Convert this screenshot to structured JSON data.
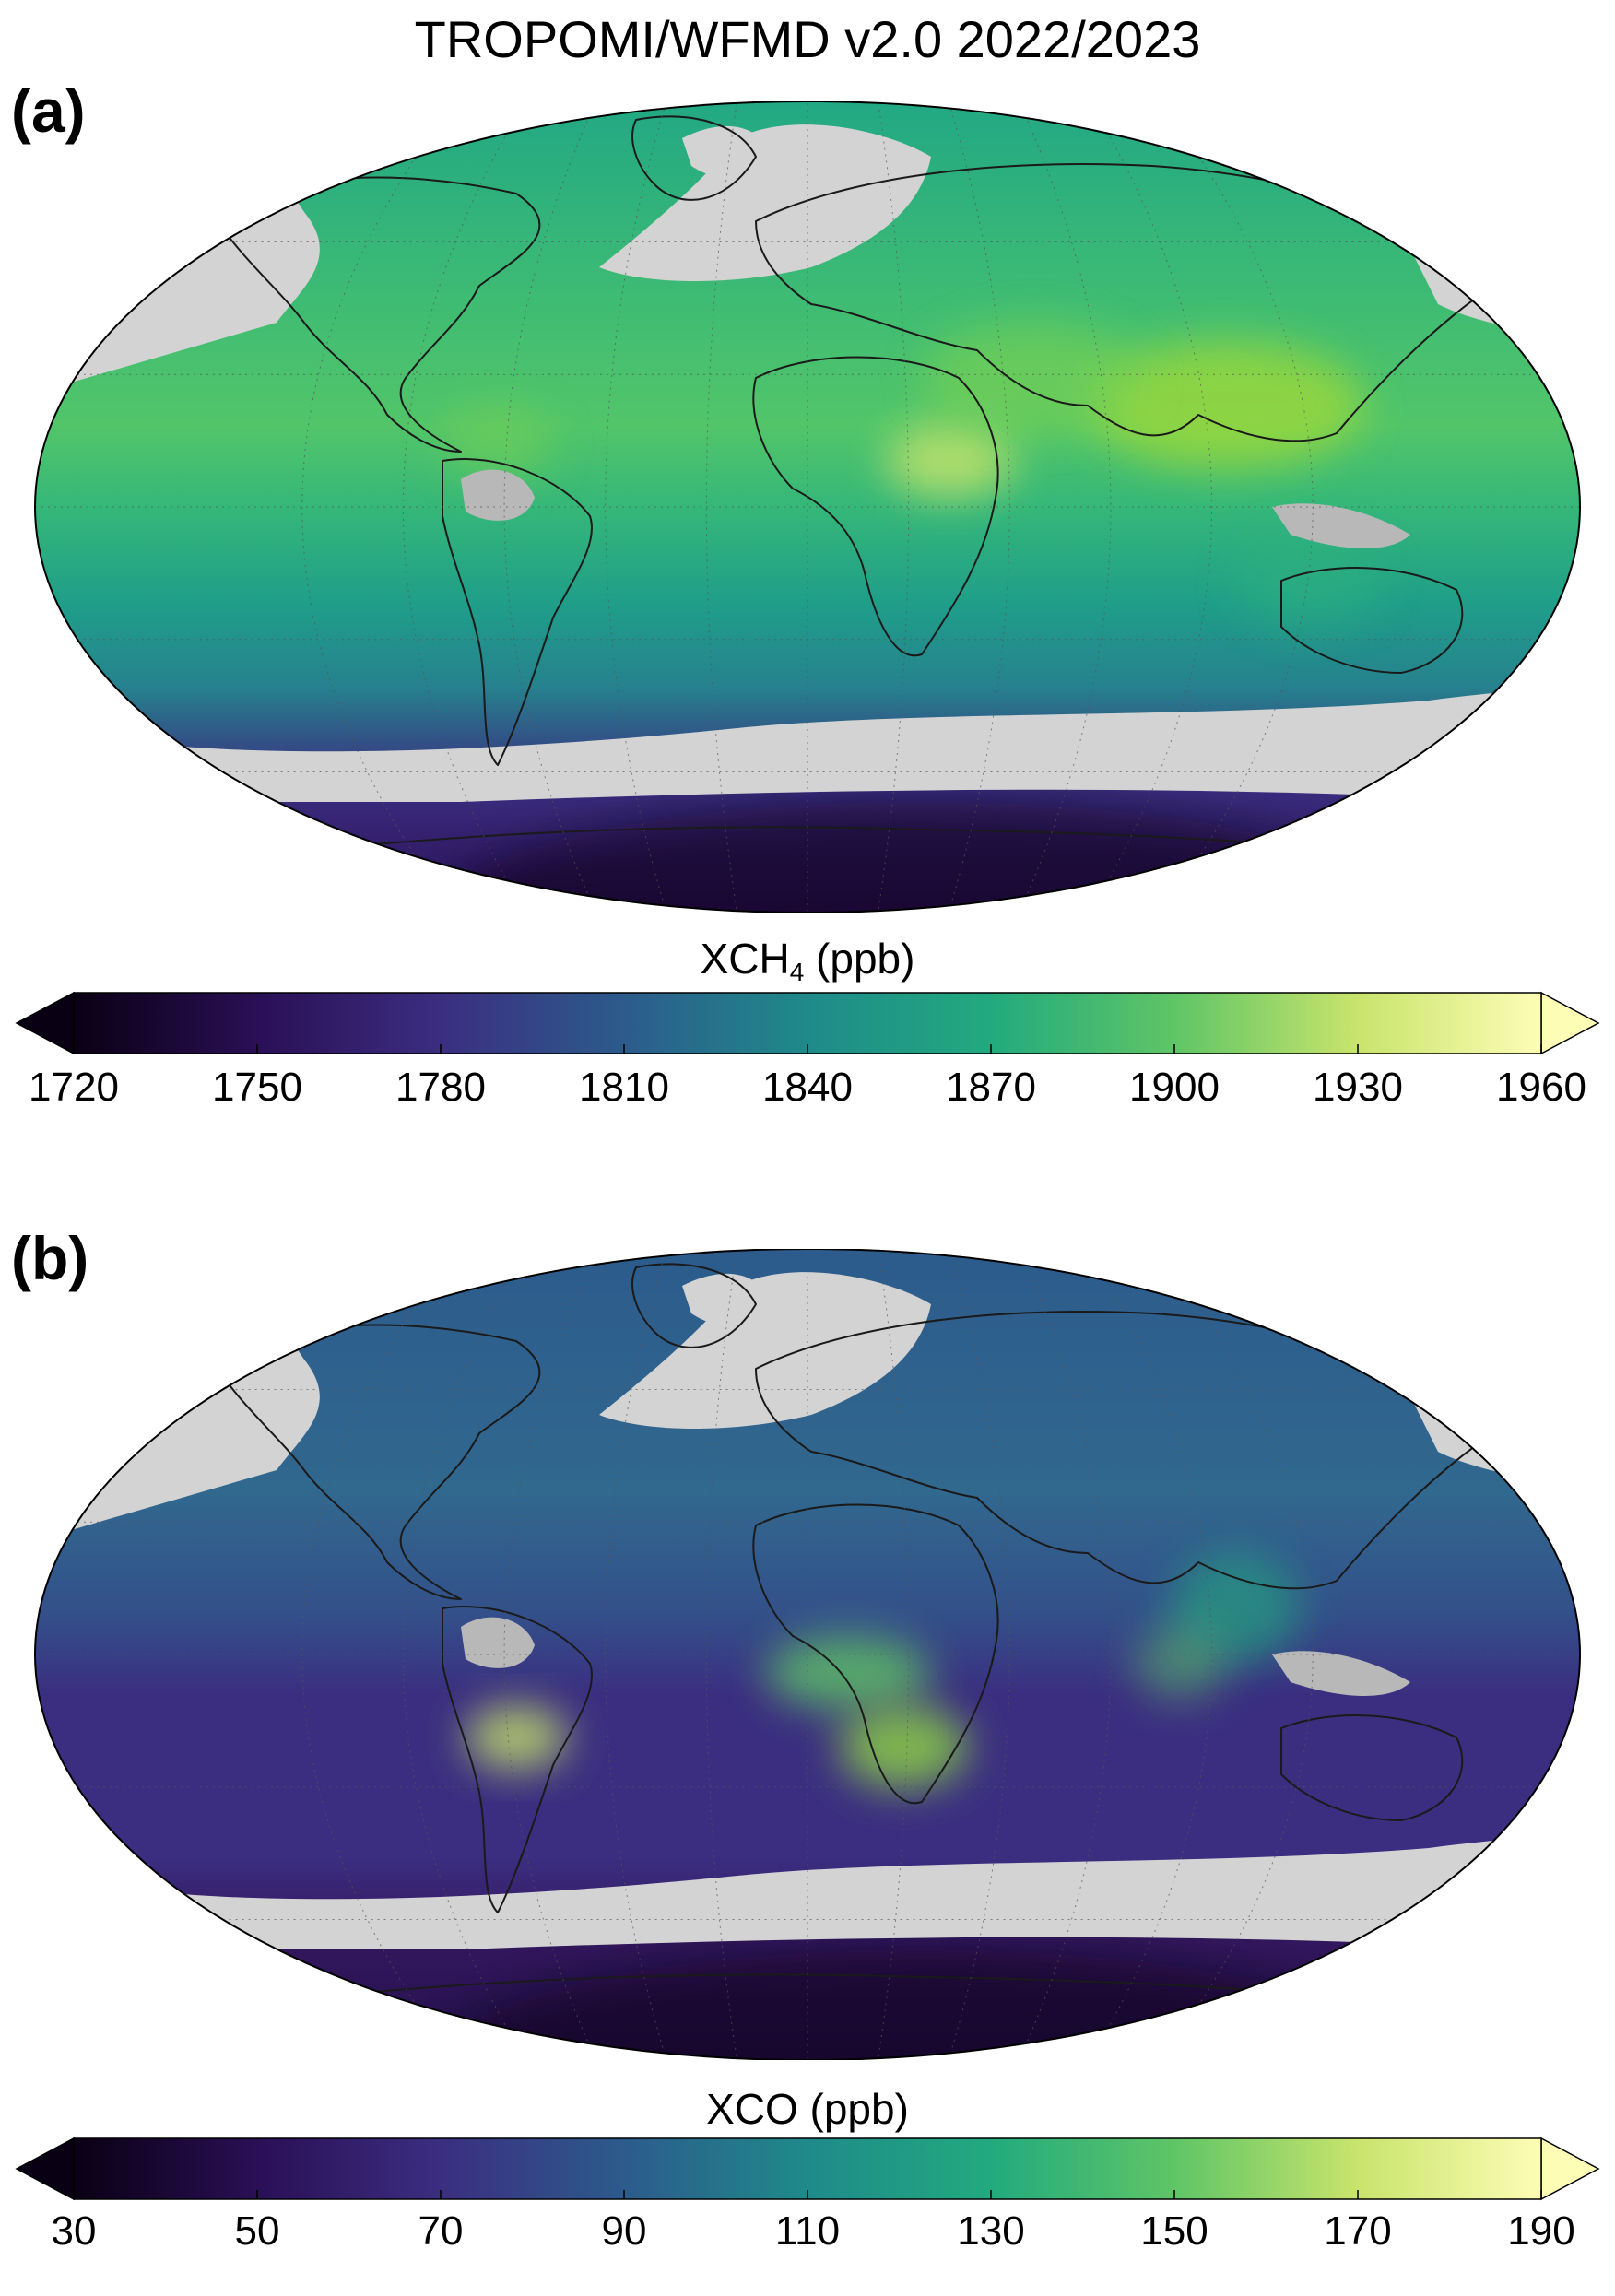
{
  "title": "TROPOMI/WFMD v2.0  2022/2023",
  "panels": [
    {
      "label": "(a)",
      "variable": "XCH",
      "subscript": "4",
      "unit": " (ppb)",
      "ticks": [
        "1720",
        "1750",
        "1780",
        "1810",
        "1840",
        "1870",
        "1900",
        "1930",
        "1960"
      ],
      "range": [
        1720,
        1960
      ],
      "colormap": "viridis-like (dark purple to pale yellow), extended both ends",
      "missing_color": "#d3d3d3"
    },
    {
      "label": "(b)",
      "variable": "XCO",
      "subscript": "",
      "unit": " (ppb)",
      "ticks": [
        "30",
        "50",
        "70",
        "90",
        "110",
        "130",
        "150",
        "170",
        "190"
      ],
      "range": [
        30,
        190
      ],
      "colormap": "viridis-like (dark purple to pale yellow), extended both ends",
      "missing_color": "#d3d3d3"
    }
  ],
  "colors": {
    "cmap_stops": [
      "#0a0013",
      "#2a0f56",
      "#3b2e80",
      "#2c5b8c",
      "#1f8a8a",
      "#22aa7e",
      "#5fc566",
      "#c9e46c",
      "#fdfdb6"
    ],
    "no_data": "#d3d3d3",
    "coastline": "#1a1a1a"
  }
}
